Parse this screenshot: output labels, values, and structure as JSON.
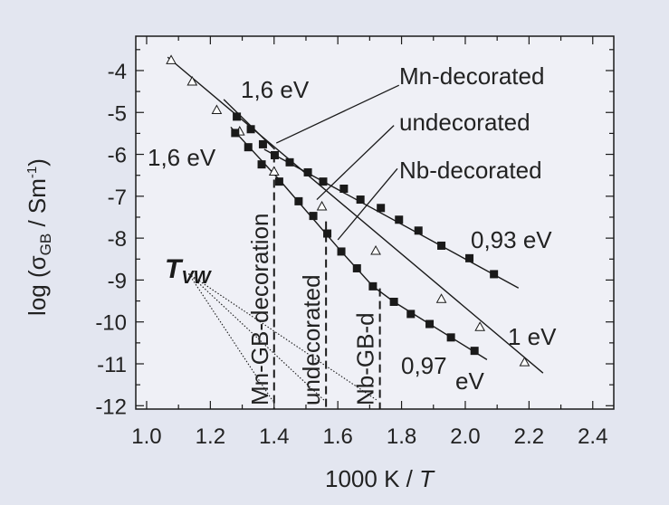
{
  "colors": {
    "background": "#e3e6f0",
    "plot_background": "#eff0f6",
    "ink": "#1a1a1a"
  },
  "chart_data": {
    "type": "scatter",
    "xlabel_main": "1000 K / ",
    "xlabel_var": "T",
    "ylabel_parts": {
      "pre": "log (σ",
      "sub": "GB",
      "mid": " / Sm",
      "sup": "-1",
      "post": ")"
    },
    "xlim": [
      0.966,
      2.466
    ],
    "ylim": [
      -12.08,
      -3.18
    ],
    "x_ticks": [
      "1.0",
      "1.2",
      "1.4",
      "1.6",
      "1.8",
      "2.0",
      "2.2",
      "2.4"
    ],
    "x_tick_values": [
      1.0,
      1.2,
      1.4,
      1.6,
      1.8,
      2.0,
      2.2,
      2.4
    ],
    "y_ticks": [
      "-4",
      "-5",
      "-6",
      "-7",
      "-8",
      "-9",
      "-10",
      "-11",
      "-12"
    ],
    "y_tick_values": [
      -4,
      -5,
      -6,
      -7,
      -8,
      -9,
      -10,
      -11,
      -12
    ],
    "grid": false,
    "series": [
      {
        "name": "Mn-decorated",
        "marker": "filled-square",
        "x": [
          1.283,
          1.327,
          1.365,
          1.402,
          1.449,
          1.506,
          1.554,
          1.619,
          1.671,
          1.735,
          1.792,
          1.853,
          1.925,
          2.013,
          2.09
        ],
        "y": [
          -5.1,
          -5.4,
          -5.76,
          -6.02,
          -6.19,
          -6.43,
          -6.65,
          -6.82,
          -7.08,
          -7.28,
          -7.56,
          -7.82,
          -8.18,
          -8.48,
          -8.86
        ]
      },
      {
        "name": "undecorated",
        "marker": "open-triangle",
        "x": [
          1.077,
          1.143,
          1.22,
          1.292,
          1.4,
          1.55,
          1.719,
          1.925,
          2.046,
          2.186
        ],
        "y": [
          -3.75,
          -4.26,
          -4.94,
          -5.45,
          -6.41,
          -7.24,
          -8.3,
          -9.45,
          -10.12,
          -10.96
        ]
      },
      {
        "name": "Nb-decorated",
        "marker": "filled-square",
        "x": [
          1.278,
          1.319,
          1.361,
          1.416,
          1.477,
          1.523,
          1.567,
          1.611,
          1.66,
          1.71,
          1.776,
          1.829,
          1.888,
          1.955,
          2.029
        ],
        "y": [
          -5.49,
          -5.83,
          -6.24,
          -6.65,
          -7.12,
          -7.47,
          -7.89,
          -8.32,
          -8.72,
          -9.15,
          -9.52,
          -9.81,
          -10.05,
          -10.37,
          -10.69
        ]
      }
    ],
    "fit_lines": [
      {
        "label": "1,6 eV",
        "points": [
          [
            1.242,
            -4.69
          ],
          [
            1.402,
            -5.88
          ]
        ]
      },
      {
        "label": "0,93 eV",
        "points": [
          [
            1.369,
            -5.88
          ],
          [
            2.167,
            -9.19
          ]
        ]
      },
      {
        "label": "1,6 eV",
        "points": [
          [
            1.264,
            -5.35
          ],
          [
            1.418,
            -6.62
          ]
        ]
      },
      {
        "label": "0,97 eV",
        "points": [
          [
            1.418,
            -6.62
          ],
          [
            1.611,
            -8.32
          ],
          [
            1.71,
            -9.15
          ],
          [
            1.776,
            -9.52
          ],
          [
            2.068,
            -10.9
          ]
        ]
      },
      {
        "label": "1 eV",
        "points": [
          [
            1.066,
            -3.68
          ],
          [
            2.244,
            -11.22
          ]
        ]
      }
    ],
    "vw_temperatures": [
      {
        "label": "Mn-GB-decoration",
        "x": 1.4,
        "y_top": -6.0
      },
      {
        "label": "undecorated",
        "x": 1.563,
        "y_top": -7.6
      },
      {
        "label": "Nb-GB-d",
        "x": 1.732,
        "y_top": -9.2
      }
    ],
    "annotations": {
      "ea_top": "1,6 eV",
      "ea_left": "1,6 eV",
      "ea_093": "0,93 eV",
      "ea_1": "1 eV",
      "ea_097": "0,97",
      "ea_097_unit": "eV",
      "legend_mn": "Mn-decorated",
      "legend_undec": "undecorated",
      "legend_nb": "Nb-decorated",
      "tvw_main": "T",
      "tvw_sub": "VW"
    },
    "leader_lines": [
      [
        [
          1.792,
          -4.35
        ],
        [
          1.407,
          -5.73
        ]
      ],
      [
        [
          1.776,
          -5.31
        ],
        [
          1.534,
          -7.08
        ]
      ],
      [
        [
          1.787,
          -6.34
        ],
        [
          1.6,
          -8.04
        ]
      ]
    ],
    "tvw_pointers": [
      [
        [
          1.132,
          -8.85
        ],
        [
          1.396,
          -11.89
        ]
      ],
      [
        [
          1.132,
          -8.85
        ],
        [
          1.56,
          -11.89
        ]
      ],
      [
        [
          1.132,
          -8.85
        ],
        [
          1.721,
          -11.86
        ]
      ]
    ]
  }
}
